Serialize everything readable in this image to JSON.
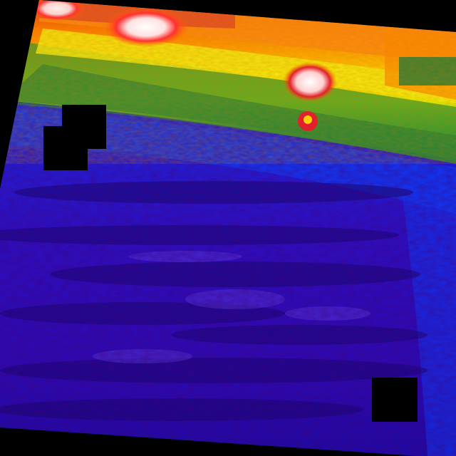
{
  "image": {
    "kind": "thermal-infrared-photo",
    "palette": [
      "#000000",
      "#1a0ad0",
      "#0030ff",
      "#1a8a3a",
      "#ffee00",
      "#ff6a00",
      "#e0202a",
      "#ffffff"
    ],
    "masked_regions_count": 3
  }
}
